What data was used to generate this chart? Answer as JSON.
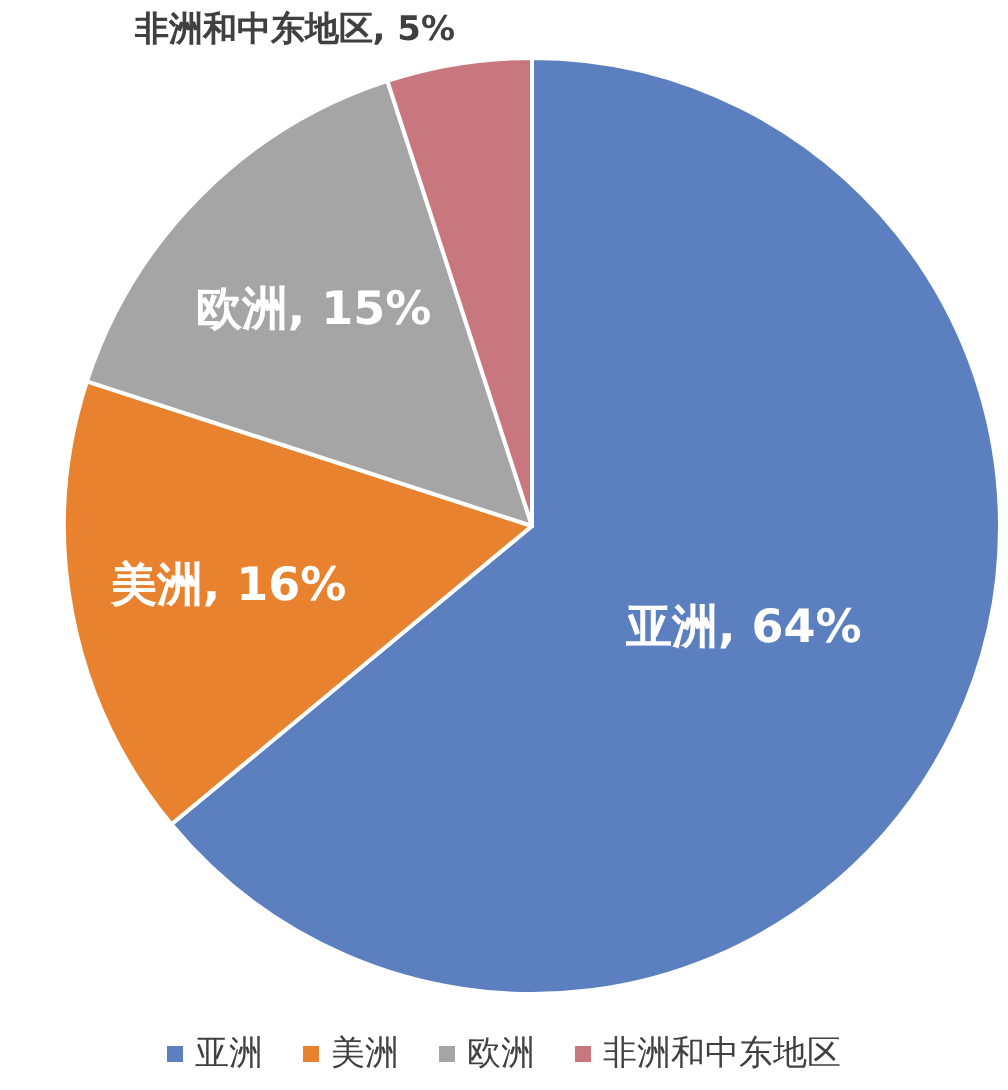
{
  "chart_data": {
    "type": "pie",
    "categories": [
      "亚洲",
      "美洲",
      "欧洲",
      "非洲和中东地区"
    ],
    "values": [
      64,
      16,
      15,
      5
    ],
    "colors": [
      "#5b7fbf",
      "#e8822f",
      "#a5a5a5",
      "#c9777f"
    ],
    "value_labels": [
      "亚洲, 64%",
      "美洲, 16%",
      "欧洲, 15%",
      "非洲和中东地区, 5%"
    ],
    "legend": "bottom"
  }
}
